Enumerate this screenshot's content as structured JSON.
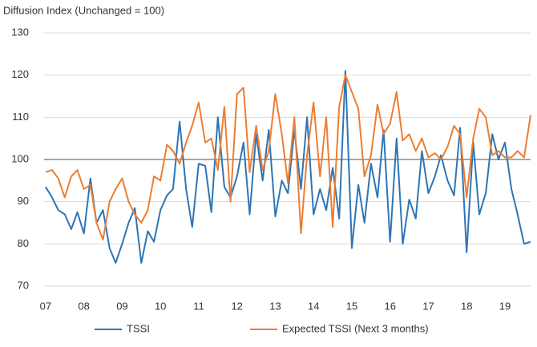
{
  "chart_data": {
    "type": "line",
    "title": "Diffusion Index (Unchanged = 100)",
    "x": [
      2007,
      2007.17,
      2007.33,
      2007.5,
      2007.67,
      2007.83,
      2008,
      2008.17,
      2008.33,
      2008.5,
      2008.67,
      2008.83,
      2009,
      2009.17,
      2009.33,
      2009.5,
      2009.67,
      2009.83,
      2010,
      2010.17,
      2010.33,
      2010.5,
      2010.67,
      2010.83,
      2011,
      2011.17,
      2011.33,
      2011.5,
      2011.67,
      2011.83,
      2012,
      2012.17,
      2012.33,
      2012.5,
      2012.67,
      2012.83,
      2013,
      2013.17,
      2013.33,
      2013.5,
      2013.67,
      2013.83,
      2014,
      2014.17,
      2014.33,
      2014.5,
      2014.67,
      2014.83,
      2015,
      2015.17,
      2015.33,
      2015.5,
      2015.67,
      2015.83,
      2016,
      2016.17,
      2016.33,
      2016.5,
      2016.67,
      2016.83,
      2017,
      2017.17,
      2017.33,
      2017.5,
      2017.67,
      2017.83,
      2018,
      2018.17,
      2018.33,
      2018.5,
      2018.67,
      2018.83,
      2019,
      2019.17,
      2019.33,
      2019.5,
      2019.67
    ],
    "series": [
      {
        "name": "TSSI",
        "color": "#2e75b6",
        "values": [
          93.5,
          91,
          88,
          87,
          83.5,
          87.5,
          82.5,
          95.5,
          85,
          88,
          79,
          75.5,
          80,
          85,
          88.5,
          75.5,
          83,
          80.5,
          88,
          91.5,
          93,
          109,
          93,
          84,
          99,
          98.5,
          87.5,
          110,
          93.5,
          91,
          96,
          104,
          87,
          106,
          95,
          107,
          86.5,
          95,
          92,
          107,
          93,
          110,
          87,
          93,
          88,
          98,
          86,
          121,
          79,
          94,
          85,
          99,
          91,
          107,
          80.5,
          105,
          80,
          90.5,
          86,
          102,
          92,
          96,
          101,
          95,
          91.5,
          107.5,
          78,
          104,
          87,
          92,
          106,
          100,
          104,
          93,
          87,
          80,
          80.5
        ]
      },
      {
        "name": "Expected TSSI (Next 3 months)",
        "color": "#ed7d31",
        "values": [
          97,
          97.5,
          95.5,
          91,
          96,
          97.5,
          93,
          94,
          85,
          81,
          90,
          93,
          95.5,
          90,
          87,
          85,
          88,
          96,
          95,
          103.5,
          102,
          99,
          104,
          108,
          113.5,
          104,
          105,
          97.5,
          112.5,
          90,
          115.5,
          117,
          97,
          108,
          97.5,
          102,
          115.5,
          106,
          94.5,
          110,
          82.5,
          101,
          113.5,
          96,
          110,
          84,
          112.5,
          120,
          116,
          112,
          96,
          101,
          113,
          106,
          108.5,
          116,
          104.5,
          106,
          102,
          105,
          100.5,
          101.5,
          100,
          103,
          108,
          106,
          91,
          105,
          112,
          110,
          101,
          102,
          100.5,
          100.5,
          102,
          100.5,
          110.5
        ]
      }
    ],
    "xlim": [
      2006.96,
      2019.67
    ],
    "xticks": [
      {
        "value": 2007,
        "label": "07"
      },
      {
        "value": 2008,
        "label": "08"
      },
      {
        "value": 2009,
        "label": "09"
      },
      {
        "value": 2010,
        "label": "10"
      },
      {
        "value": 2011,
        "label": "11"
      },
      {
        "value": 2012,
        "label": "12"
      },
      {
        "value": 2013,
        "label": "13"
      },
      {
        "value": 2014,
        "label": "14"
      },
      {
        "value": 2015,
        "label": "15"
      },
      {
        "value": 2016,
        "label": "16"
      },
      {
        "value": 2017,
        "label": "17"
      },
      {
        "value": 2018,
        "label": "18"
      },
      {
        "value": 2019,
        "label": "19"
      }
    ],
    "ylim": [
      70,
      130
    ],
    "yticks": [
      70,
      80,
      90,
      100,
      110,
      120,
      130
    ],
    "reference_line": 100,
    "grid": true,
    "legend": "bottom"
  }
}
